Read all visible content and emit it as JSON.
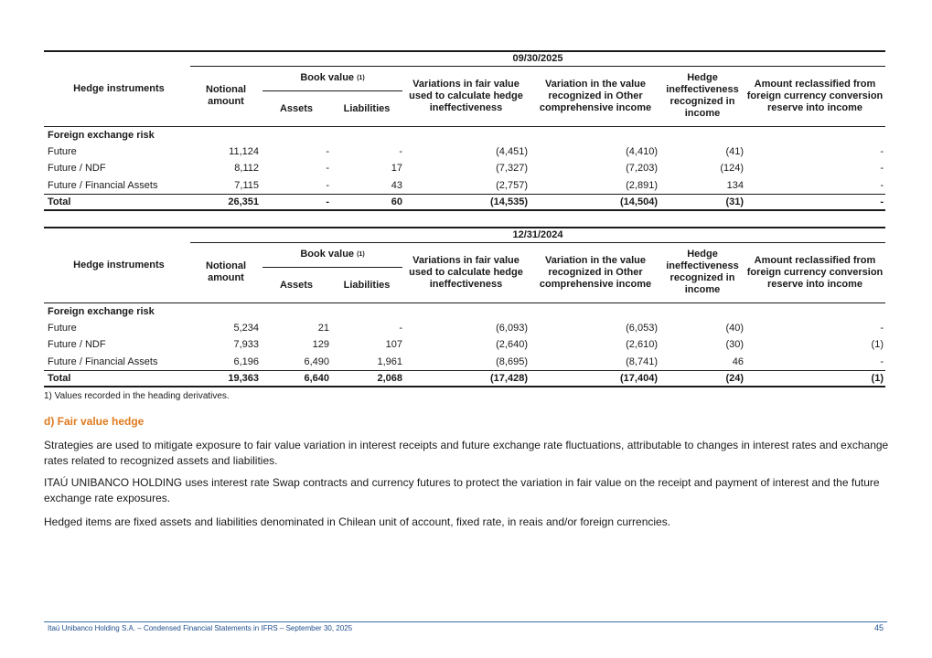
{
  "tables": [
    {
      "period": "09/30/2025",
      "headers": {
        "instrument": "Hedge instruments",
        "notional": "Notional amount",
        "book_value": "Book value",
        "book_value_note": "(1)",
        "assets": "Assets",
        "liabilities": "Liabilities",
        "variations": "Variations in fair value used to calculate hedge ineffectiveness",
        "oci": "Variation in the value recognized in Other comprehensive income",
        "ineffectiveness": "Hedge ineffectiveness recognized in income",
        "reclassified": "Amount reclassified from foreign currency conversion reserve into income"
      },
      "group": "Foreign exchange risk",
      "rows": [
        [
          "Future",
          "11,124",
          "-",
          "-",
          "(4,451)",
          "(4,410)",
          "(41)",
          "-"
        ],
        [
          "Future / NDF",
          "8,112",
          "-",
          "17",
          "(7,327)",
          "(7,203)",
          "(124)",
          "-"
        ],
        [
          "Future / Financial Assets",
          "7,115",
          "-",
          "43",
          "(2,757)",
          "(2,891)",
          "134",
          "-"
        ]
      ],
      "total": [
        "Total",
        "26,351",
        "-",
        "60",
        "(14,535)",
        "(14,504)",
        "(31)",
        "-"
      ]
    },
    {
      "period": "12/31/2024",
      "headers": {
        "instrument": "Hedge instruments",
        "notional": "Notional amount",
        "book_value": "Book value",
        "book_value_note": "(1)",
        "assets": "Assets",
        "liabilities": "Liabilities",
        "variations": "Variations in fair value used to calculate hedge ineffectiveness",
        "oci": "Variation in the value recognized in Other comprehensive income",
        "ineffectiveness": "Hedge ineffectiveness recognized in income",
        "reclassified": "Amount reclassified from foreign currency conversion reserve into income"
      },
      "group": "Foreign exchange risk",
      "rows": [
        [
          "Future",
          "5,234",
          "21",
          "-",
          "(6,093)",
          "(6,053)",
          "(40)",
          "-"
        ],
        [
          "Future / NDF",
          "7,933",
          "129",
          "107",
          "(2,640)",
          "(2,610)",
          "(30)",
          "(1)"
        ],
        [
          "Future / Financial Assets",
          "6,196",
          "6,490",
          "1,961",
          "(8,695)",
          "(8,741)",
          "46",
          "-"
        ]
      ],
      "total": [
        "Total",
        "19,363",
        "6,640",
        "2,068",
        "(17,428)",
        "(17,404)",
        "(24)",
        "(1)"
      ]
    }
  ],
  "footnote": "1) Values recorded in the heading derivatives.",
  "section": {
    "heading": "d) Fair value hedge",
    "paragraphs": [
      "Strategies are used to mitigate exposure to fair value variation in interest receipts and future exchange rate fluctuations, attributable to changes in interest rates and exchange rates related to recognized assets and liabilities.",
      "ITAÚ UNIBANCO HOLDING uses interest rate Swap contracts and currency futures to protect the variation in fair value on the receipt and payment of interest and the future exchange rate exposures.",
      "Hedged items are fixed assets and liabilities denominated in Chilean unit of account, fixed rate, in reais and/or foreign currencies."
    ]
  },
  "footer": {
    "text": "Itaú Unibanco Holding S.A. – Condensed Financial Statements in IFRS – September 30, 2025",
    "page": "45"
  }
}
